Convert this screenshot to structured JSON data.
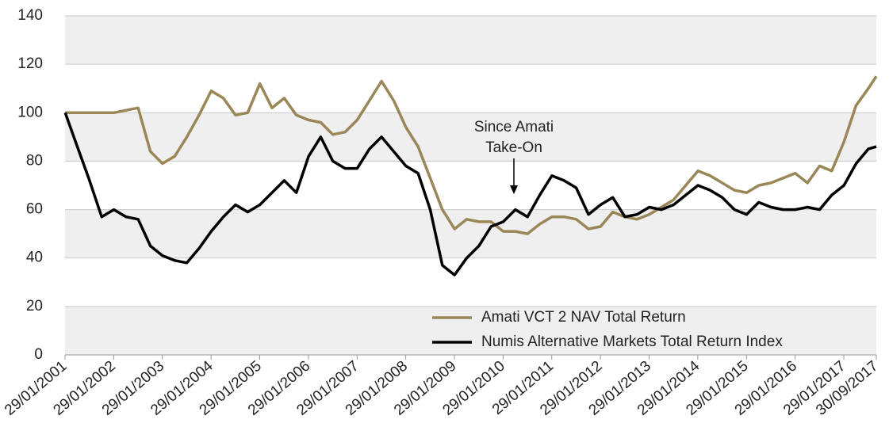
{
  "chart_data": {
    "type": "line",
    "x": [
      2001.08,
      2001.33,
      2001.58,
      2001.83,
      2002.08,
      2002.33,
      2002.58,
      2002.83,
      2003.08,
      2003.33,
      2003.58,
      2003.83,
      2004.08,
      2004.33,
      2004.58,
      2004.83,
      2005.08,
      2005.33,
      2005.58,
      2005.83,
      2006.08,
      2006.33,
      2006.58,
      2006.83,
      2007.08,
      2007.33,
      2007.58,
      2007.83,
      2008.08,
      2008.33,
      2008.58,
      2008.83,
      2009.08,
      2009.33,
      2009.58,
      2009.83,
      2010.08,
      2010.33,
      2010.58,
      2010.83,
      2011.08,
      2011.33,
      2011.58,
      2011.83,
      2012.08,
      2012.33,
      2012.58,
      2012.83,
      2013.08,
      2013.33,
      2013.58,
      2013.83,
      2014.08,
      2014.33,
      2014.58,
      2014.83,
      2015.08,
      2015.33,
      2015.58,
      2015.83,
      2016.08,
      2016.33,
      2016.58,
      2016.83,
      2017.08,
      2017.33,
      2017.58,
      2017.745
    ],
    "series": [
      {
        "name": "Amati VCT 2 NAV Total Return",
        "color": "#9a8758",
        "values": [
          100,
          100,
          100,
          100,
          100,
          101,
          102,
          84,
          79,
          82,
          90,
          99,
          109,
          106,
          99,
          100,
          112,
          102,
          106,
          99,
          97,
          96,
          91,
          92,
          97,
          105,
          113,
          105,
          94,
          86,
          73,
          60,
          52,
          56,
          55,
          55,
          51,
          51,
          50,
          54,
          57,
          57,
          56,
          52,
          53,
          59,
          57,
          56,
          58,
          61,
          64,
          70,
          76,
          74,
          71,
          68,
          67,
          70,
          71,
          73,
          75,
          71,
          78,
          76,
          88,
          103,
          110,
          115
        ]
      },
      {
        "name": "Numis Alternative Markets Total Return Index",
        "color": "#000000",
        "values": [
          100,
          86,
          72,
          57,
          60,
          57,
          56,
          45,
          41,
          39,
          38,
          44,
          51,
          57,
          62,
          59,
          62,
          67,
          72,
          67,
          82,
          90,
          80,
          77,
          77,
          85,
          90,
          84,
          78,
          75,
          60,
          37,
          33,
          40,
          45,
          53,
          55,
          60,
          57,
          66,
          74,
          72,
          69,
          58,
          62,
          65,
          57,
          58,
          61,
          60,
          62,
          66,
          70,
          68,
          65,
          60,
          58,
          63,
          61,
          60,
          60,
          61,
          60,
          66,
          70,
          79,
          85,
          86
        ]
      }
    ],
    "xlim": [
      2001.077,
      2017.745
    ],
    "xticks": [
      {
        "value": 2001.077,
        "label": "29/01/2001"
      },
      {
        "value": 2002.077,
        "label": "29/01/2002"
      },
      {
        "value": 2003.077,
        "label": "29/01/2003"
      },
      {
        "value": 2004.077,
        "label": "29/01/2004"
      },
      {
        "value": 2005.077,
        "label": "29/01/2005"
      },
      {
        "value": 2006.077,
        "label": "29/01/2006"
      },
      {
        "value": 2007.077,
        "label": "29/01/2007"
      },
      {
        "value": 2008.077,
        "label": "29/01/2008"
      },
      {
        "value": 2009.077,
        "label": "29/01/2009"
      },
      {
        "value": 2010.077,
        "label": "29/01/2010"
      },
      {
        "value": 2011.077,
        "label": "29/01/2011"
      },
      {
        "value": 2012.077,
        "label": "29/01/2012"
      },
      {
        "value": 2013.077,
        "label": "29/01/2013"
      },
      {
        "value": 2014.077,
        "label": "29/01/2014"
      },
      {
        "value": 2015.077,
        "label": "29/01/2015"
      },
      {
        "value": 2016.077,
        "label": "29/01/2016"
      },
      {
        "value": 2017.077,
        "label": "29/01/2017"
      },
      {
        "value": 2017.745,
        "label": "30/09/2017"
      }
    ],
    "ylim": [
      0,
      140
    ],
    "yticks": [
      0,
      20,
      40,
      60,
      80,
      100,
      120,
      140
    ],
    "grid": true,
    "bands": true,
    "legend": "lower right",
    "annotation": [
      "Since Amati",
      "Take-On"
    ]
  }
}
